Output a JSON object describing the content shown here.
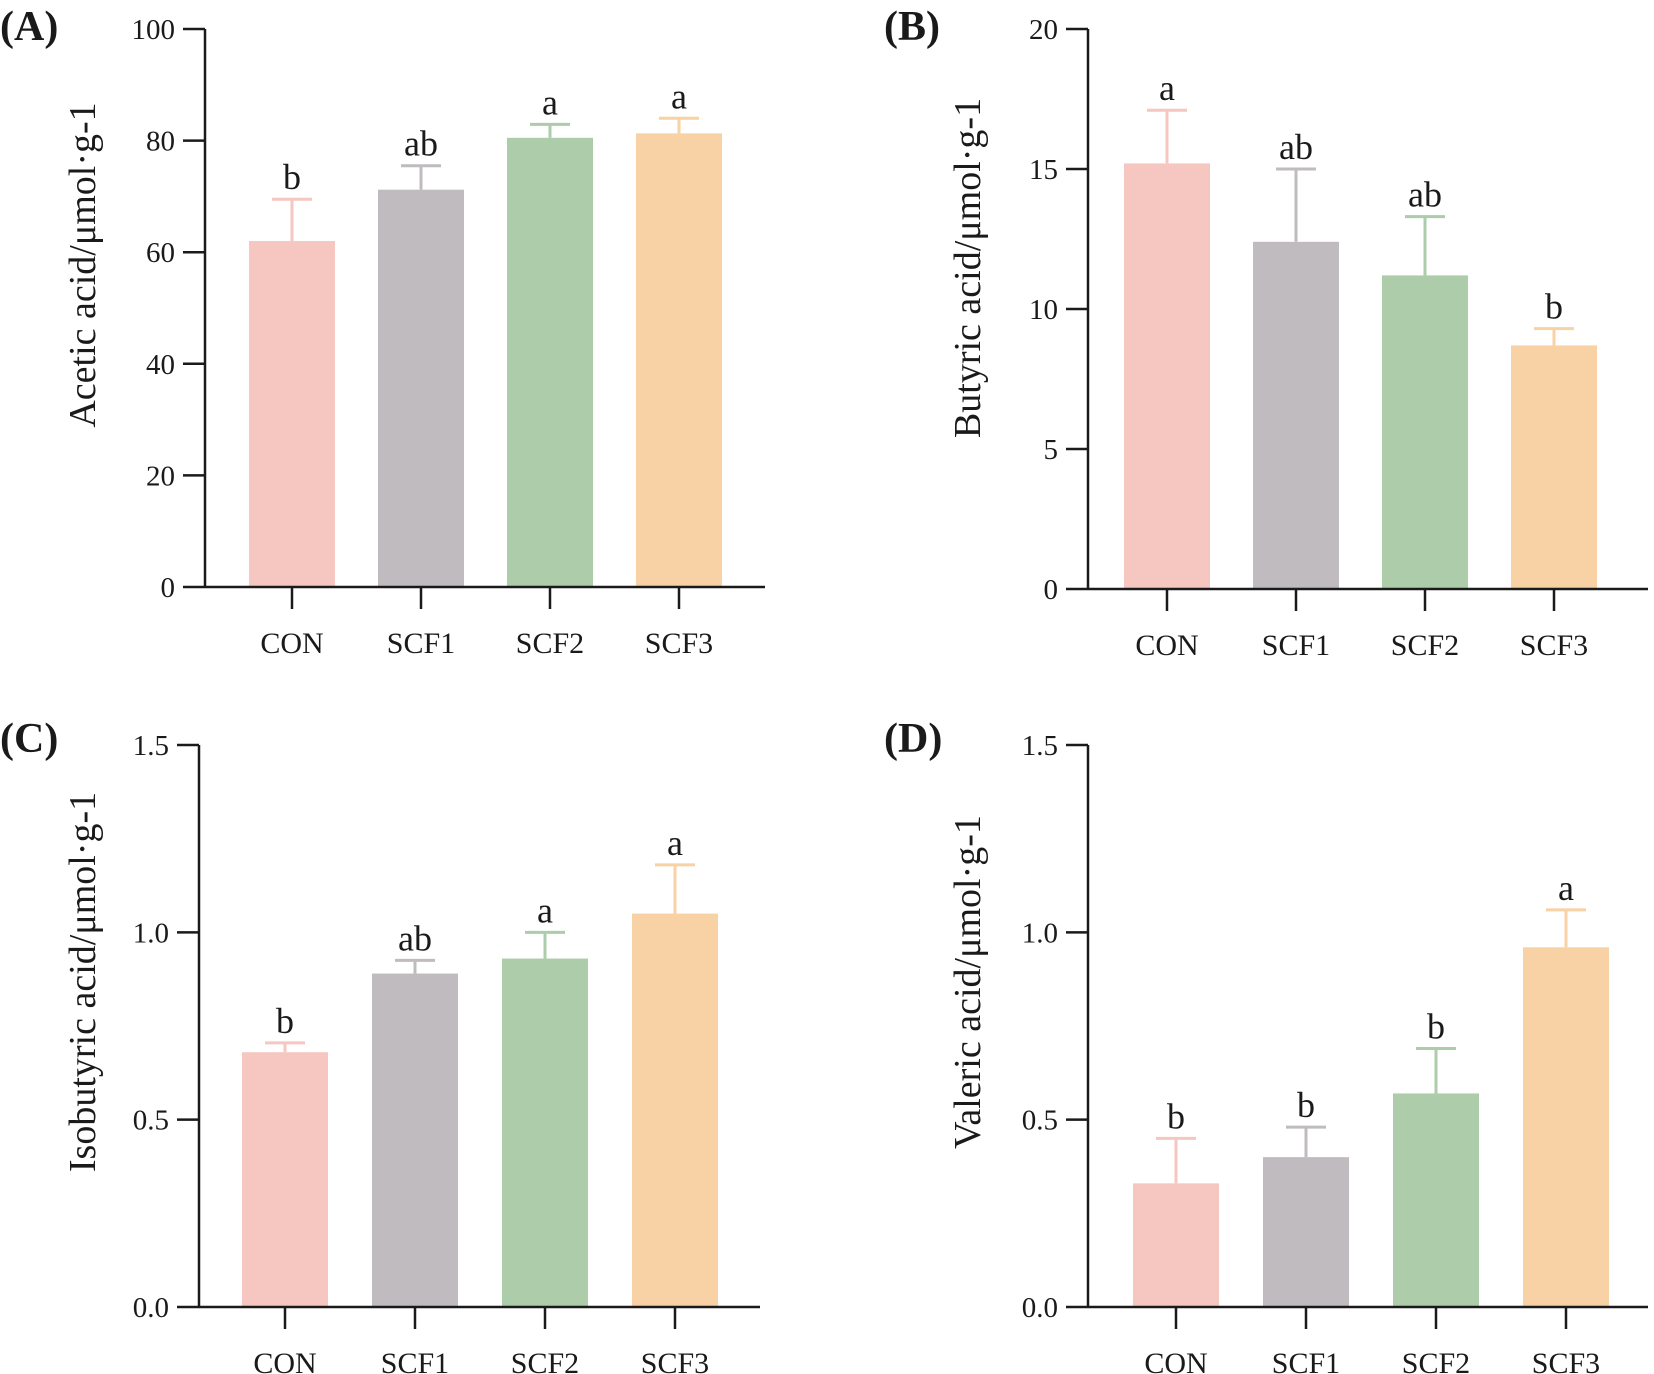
{
  "colors": {
    "CON": "#f6c6c0",
    "SCF1": "#bfbbbf",
    "SCF2": "#acccaa",
    "SCF3": "#f8d1a5",
    "axis": "#1a1a1a"
  },
  "chart_data": [
    {
      "type": "bar",
      "panel_label": "(A)",
      "ylabel": "Acetic acid/μmol·g-1",
      "categories": [
        "CON",
        "SCF1",
        "SCF2",
        "SCF3"
      ],
      "values": [
        62,
        71.2,
        80.5,
        81.3
      ],
      "errors": [
        7.5,
        4.3,
        2.4,
        2.7
      ],
      "significance": [
        "b",
        "ab",
        "a",
        "a"
      ],
      "ylim": [
        0,
        100
      ],
      "yticks": [
        0,
        20,
        40,
        60,
        80,
        100
      ],
      "ytick_labels": [
        "0",
        "20",
        "40",
        "60",
        "80",
        "100"
      ]
    },
    {
      "type": "bar",
      "panel_label": "(B)",
      "ylabel": "Butyric acid/μmol·g-1",
      "categories": [
        "CON",
        "SCF1",
        "SCF2",
        "SCF3"
      ],
      "values": [
        15.2,
        12.4,
        11.2,
        8.7
      ],
      "errors": [
        1.9,
        2.6,
        2.1,
        0.6
      ],
      "significance": [
        "a",
        "ab",
        "ab",
        "b"
      ],
      "ylim": [
        0,
        20
      ],
      "yticks": [
        0,
        5,
        10,
        15,
        20
      ],
      "ytick_labels": [
        "0",
        "5",
        "10",
        "15",
        "20"
      ]
    },
    {
      "type": "bar",
      "panel_label": "(C)",
      "ylabel": "Isobutyric acid/μmol·g-1",
      "categories": [
        "CON",
        "SCF1",
        "SCF2",
        "SCF3"
      ],
      "values": [
        0.68,
        0.89,
        0.93,
        1.05
      ],
      "errors": [
        0.025,
        0.035,
        0.07,
        0.13
      ],
      "significance": [
        "b",
        "ab",
        "a",
        "a"
      ],
      "ylim": [
        0,
        1.5
      ],
      "yticks": [
        0,
        0.5,
        1.0,
        1.5
      ],
      "ytick_labels": [
        "0.0",
        "0.5",
        "1.0",
        "1.5"
      ]
    },
    {
      "type": "bar",
      "panel_label": "(D)",
      "ylabel": "Valeric acid/μmol·g-1",
      "categories": [
        "CON",
        "SCF1",
        "SCF2",
        "SCF3"
      ],
      "values": [
        0.33,
        0.4,
        0.57,
        0.96
      ],
      "errors": [
        0.12,
        0.08,
        0.12,
        0.1
      ],
      "significance": [
        "b",
        "b",
        "b",
        "a"
      ],
      "ylim": [
        0,
        1.5
      ],
      "yticks": [
        0,
        0.5,
        1.0,
        1.5
      ],
      "ytick_labels": [
        "0.0",
        "0.5",
        "1.0",
        "1.5"
      ]
    }
  ]
}
